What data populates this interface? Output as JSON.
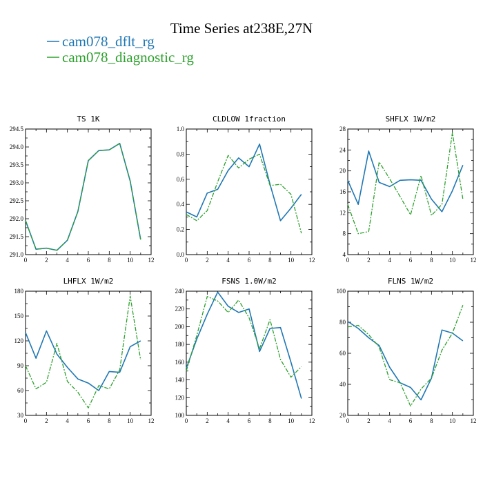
{
  "title": "Time Series at238E,27N",
  "legend": [
    {
      "label": "cam078_dflt_rg",
      "color": "#1f77b4",
      "dash": "solid"
    },
    {
      "label": "cam078_diagnostic_rg",
      "color": "#2ca02c",
      "dash": "dashdot"
    }
  ],
  "colors": {
    "series1": "#1f77b4",
    "series2": "#2ca02c"
  },
  "chart_data": [
    {
      "type": "line",
      "title": "TS   1K",
      "x": [
        0,
        1,
        2,
        3,
        4,
        5,
        6,
        7,
        8,
        9,
        10,
        11
      ],
      "xlim": [
        0,
        12
      ],
      "xticks": [
        "0",
        "2",
        "4",
        "6",
        "8",
        "10",
        "12"
      ],
      "ylim": [
        291.0,
        294.5
      ],
      "yticks": [
        "291.0",
        "291.5",
        "292.0",
        "292.5",
        "293.0",
        "293.5",
        "294.0",
        "294.5"
      ],
      "series": [
        {
          "name": "cam078_dflt_rg",
          "values": [
            291.95,
            291.15,
            291.18,
            291.12,
            291.4,
            292.2,
            293.62,
            293.9,
            293.92,
            294.1,
            293.05,
            291.42
          ]
        },
        {
          "name": "cam078_diagnostic_rg",
          "values": [
            291.95,
            291.15,
            291.18,
            291.12,
            291.4,
            292.2,
            293.62,
            293.9,
            293.92,
            294.1,
            293.05,
            291.42
          ]
        }
      ]
    },
    {
      "type": "line",
      "title": "CLDLOW   1fraction",
      "x": [
        0,
        1,
        2,
        3,
        4,
        5,
        6,
        7,
        8,
        9,
        10,
        11
      ],
      "xlim": [
        0,
        12
      ],
      "xticks": [
        "0",
        "2",
        "4",
        "6",
        "8",
        "10",
        "12"
      ],
      "ylim": [
        0.0,
        1.0
      ],
      "yticks": [
        "0.0",
        "0.2",
        "0.4",
        "0.6",
        "0.8",
        "1.0"
      ],
      "series": [
        {
          "name": "cam078_dflt_rg",
          "values": [
            0.34,
            0.3,
            0.49,
            0.52,
            0.67,
            0.77,
            0.7,
            0.88,
            0.56,
            0.27,
            0.37,
            0.48
          ]
        },
        {
          "name": "cam078_diagnostic_rg",
          "values": [
            0.32,
            0.27,
            0.35,
            0.58,
            0.79,
            0.69,
            0.76,
            0.8,
            0.55,
            0.56,
            0.48,
            0.17
          ]
        }
      ]
    },
    {
      "type": "line",
      "title": "SHFLX   1W/m2",
      "x": [
        0,
        1,
        2,
        3,
        4,
        5,
        6,
        7,
        8,
        9,
        10,
        11
      ],
      "xlim": [
        0,
        12
      ],
      "xticks": [
        "0",
        "2",
        "4",
        "6",
        "8",
        "10",
        "12"
      ],
      "ylim": [
        4,
        28
      ],
      "yticks": [
        "4",
        "8",
        "12",
        "16",
        "20",
        "24",
        "28"
      ],
      "series": [
        {
          "name": "cam078_dflt_rg",
          "values": [
            18.2,
            13.6,
            23.8,
            17.8,
            17.0,
            18.2,
            18.3,
            18.2,
            14.6,
            12.2,
            16.2,
            21.1
          ]
        },
        {
          "name": "cam078_diagnostic_rg",
          "values": [
            13.6,
            8.0,
            8.4,
            21.7,
            18.5,
            15.1,
            11.6,
            19.1,
            11.5,
            13.6,
            27.3,
            14.6
          ]
        }
      ]
    },
    {
      "type": "line",
      "title": "LHFLX   1W/m2",
      "x": [
        0,
        1,
        2,
        3,
        4,
        5,
        6,
        7,
        8,
        9,
        10,
        11
      ],
      "xlim": [
        0,
        12
      ],
      "xticks": [
        "0",
        "2",
        "4",
        "6",
        "8",
        "10",
        "12"
      ],
      "ylim": [
        30,
        180
      ],
      "yticks": [
        "30",
        "60",
        "90",
        "120",
        "150",
        "180"
      ],
      "series": [
        {
          "name": "cam078_dflt_rg",
          "values": [
            130,
            99,
            132,
            104,
            88,
            74,
            69,
            60,
            83,
            82,
            113,
            120
          ]
        },
        {
          "name": "cam078_diagnostic_rg",
          "values": [
            90,
            62,
            70,
            117,
            71,
            58,
            39,
            66,
            62,
            85,
            174,
            97
          ]
        }
      ]
    },
    {
      "type": "line",
      "title": "FSNS   1.0W/m2",
      "x": [
        0,
        1,
        2,
        3,
        4,
        5,
        6,
        7,
        8,
        9,
        10,
        11
      ],
      "xlim": [
        0,
        12
      ],
      "xticks": [
        "0",
        "2",
        "4",
        "6",
        "8",
        "10",
        "12"
      ],
      "ylim": [
        100,
        240
      ],
      "yticks": [
        "100",
        "120",
        "140",
        "160",
        "180",
        "200",
        "220",
        "240"
      ],
      "series": [
        {
          "name": "cam078_dflt_rg",
          "values": [
            153,
            186,
            214,
            239,
            223,
            216,
            220,
            172,
            198,
            199,
            160,
            119
          ]
        },
        {
          "name": "cam078_diagnostic_rg",
          "values": [
            150,
            190,
            234,
            229,
            216,
            230,
            210,
            175,
            208,
            163,
            143,
            155
          ]
        }
      ]
    },
    {
      "type": "line",
      "title": "FLNS   1W/m2",
      "x": [
        0,
        1,
        2,
        3,
        4,
        5,
        6,
        7,
        8,
        9,
        10,
        11
      ],
      "xlim": [
        0,
        12
      ],
      "xticks": [
        "0",
        "2",
        "4",
        "6",
        "8",
        "10",
        "12"
      ],
      "ylim": [
        20,
        100
      ],
      "yticks": [
        "20",
        "40",
        "60",
        "80",
        "100"
      ],
      "series": [
        {
          "name": "cam078_dflt_rg",
          "values": [
            80.5,
            76,
            70,
            65,
            51,
            41,
            38,
            30,
            44,
            75,
            73,
            68
          ]
        },
        {
          "name": "cam078_diagnostic_rg",
          "values": [
            77,
            78,
            72,
            64,
            43,
            41,
            26,
            37,
            44,
            62,
            73,
            91
          ]
        }
      ]
    }
  ]
}
